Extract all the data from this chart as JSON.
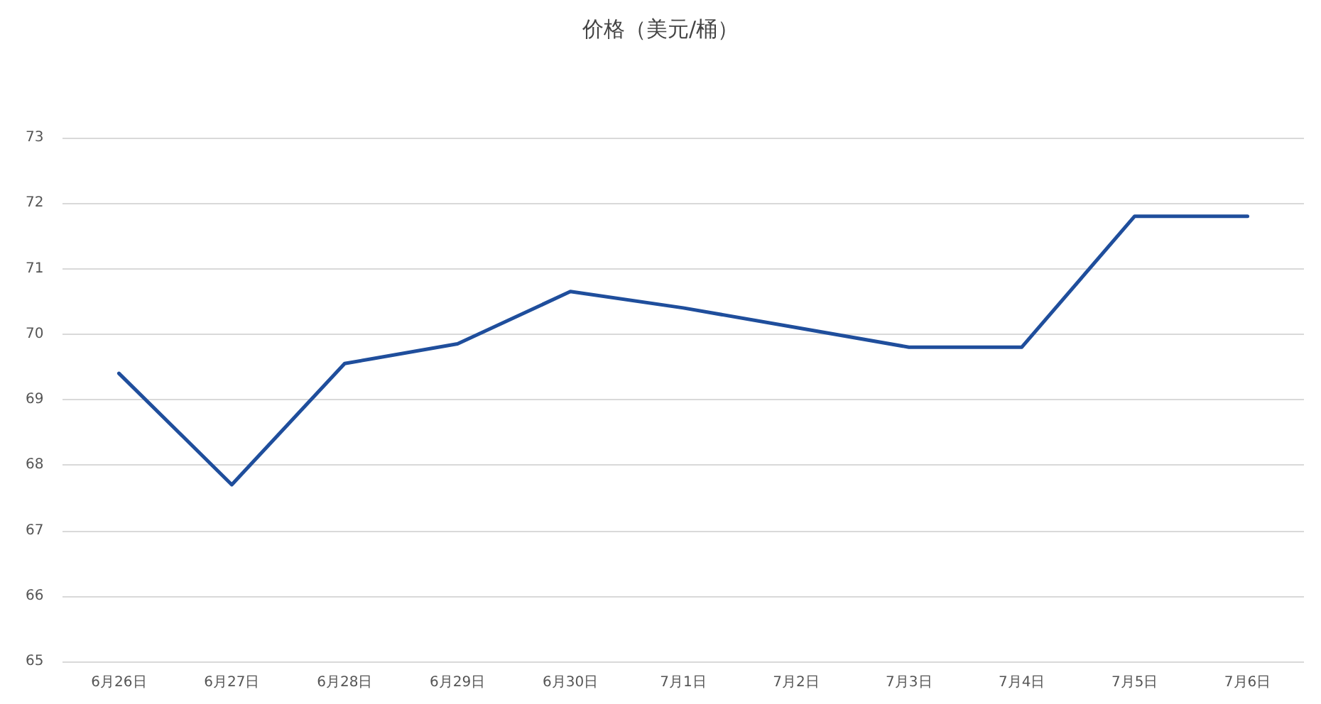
{
  "chart_data": {
    "type": "line",
    "title": "价格（美元/桶）",
    "categories": [
      "6月26日",
      "6月27日",
      "6月28日",
      "6月29日",
      "6月30日",
      "7月1日",
      "7月2日",
      "7月3日",
      "7月4日",
      "7月5日",
      "7月6日"
    ],
    "series": [
      {
        "color": "#1f4e9c",
        "values": [
          69.4,
          67.7,
          69.55,
          69.85,
          70.65,
          70.4,
          70.1,
          69.8,
          69.8,
          71.8,
          71.8
        ]
      }
    ],
    "ylim": [
      65,
      73
    ],
    "yticks": [
      65,
      66,
      67,
      68,
      69,
      70,
      71,
      72,
      73
    ],
    "grid": "y",
    "marker": "none",
    "line_style": "solid"
  }
}
